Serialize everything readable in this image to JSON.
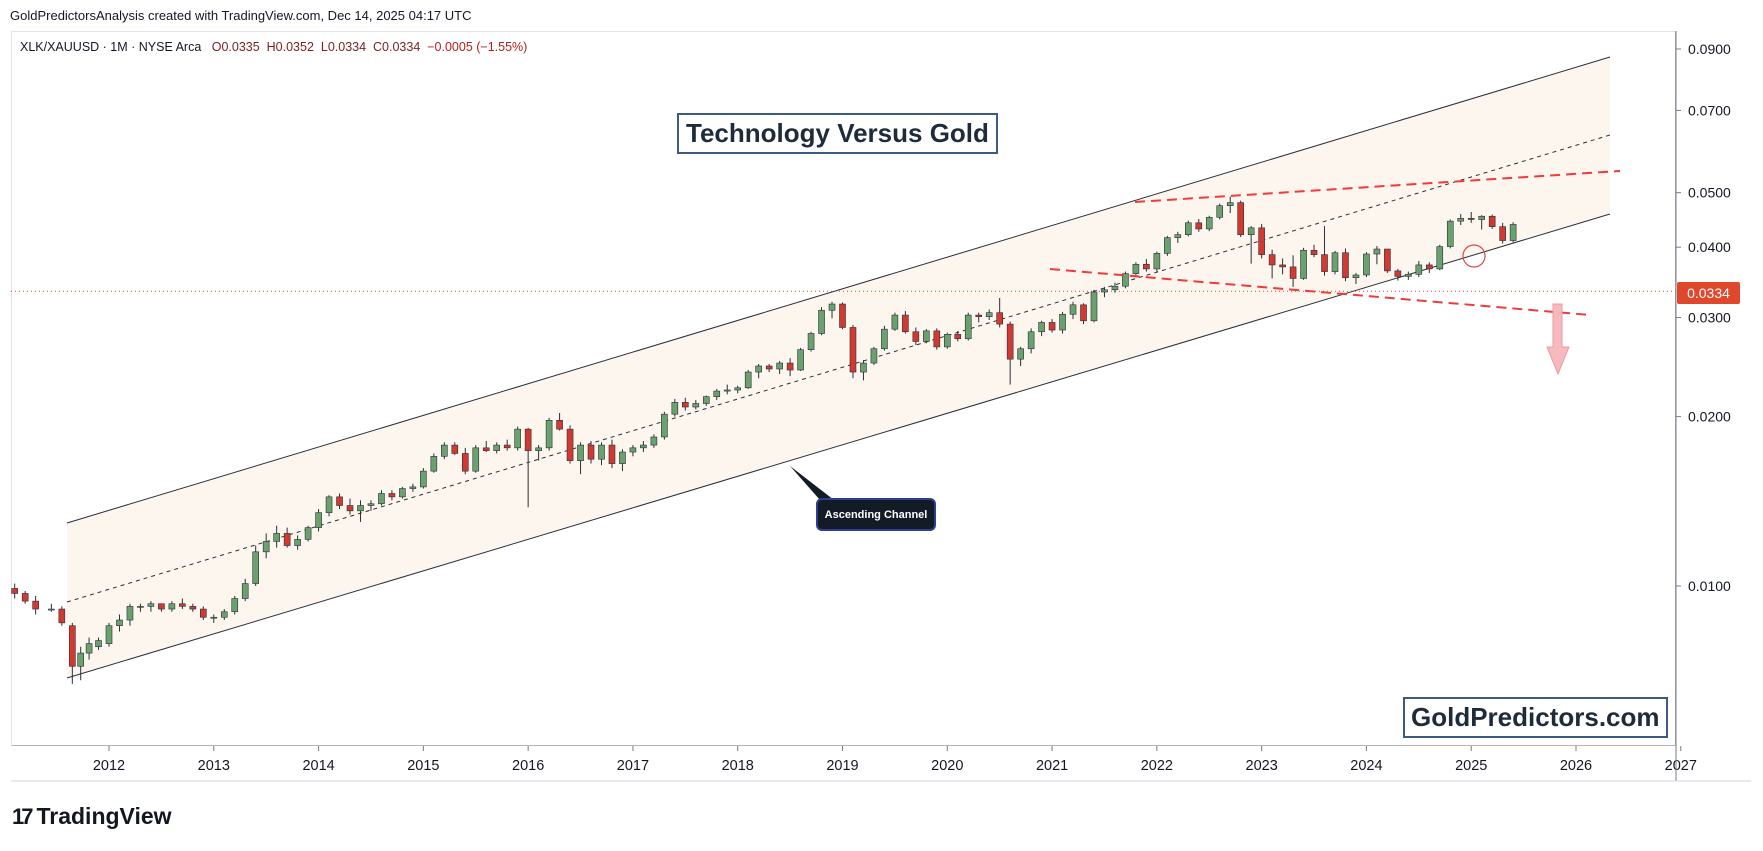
{
  "header": {
    "attribution": "GoldPredictorsAnalysis created with TradingView.com, Dec 14, 2025 04:17 UTC"
  },
  "legend": {
    "symbol": "XLK/XAUUSD · 1M · NYSE Arca",
    "open": "O0.0335",
    "high": "H0.0352",
    "low": "L0.0334",
    "close": "C0.0334",
    "change": "−0.0005 (−1.55%)"
  },
  "annotations": {
    "title": "Technology Versus Gold",
    "callout": "Ascending Channel",
    "brand": "GoldPredictors.com",
    "current_price": "0.0334"
  },
  "footer": {
    "logo_text": "TradingView"
  },
  "colors": {
    "up": "#6aa26e",
    "down": "#d13a30",
    "channel_fill": "#fdf6ee",
    "price_line": "#e0482e",
    "dashed_red": "#ee3b3b",
    "arrow": "#f6b9bd"
  },
  "chart_data": {
    "type": "candlestick",
    "scale": "log",
    "y_ticks": [
      "0.0900",
      "0.0700",
      "0.0500",
      "0.0400",
      "0.0300",
      "0.0200",
      "0.0100"
    ],
    "x_ticks": [
      "2012",
      "2013",
      "2014",
      "2015",
      "2016",
      "2017",
      "2018",
      "2019",
      "2020",
      "2021",
      "2022",
      "2023",
      "2024",
      "2025",
      "2026",
      "2027"
    ],
    "ylim": [
      0.0062,
      0.097
    ],
    "xlim": [
      2011.0,
      2027.15
    ],
    "current_price": 0.0334,
    "candles": [
      {
        "t": 2011.1,
        "o": 0.0099,
        "h": 0.0101,
        "l": 0.0095,
        "c": 0.0097
      },
      {
        "t": 2011.2,
        "o": 0.0097,
        "h": 0.0098,
        "l": 0.0093,
        "c": 0.0094
      },
      {
        "t": 2011.3,
        "o": 0.0094,
        "h": 0.0096,
        "l": 0.0089,
        "c": 0.0091
      },
      {
        "t": 2011.45,
        "o": 0.0091,
        "h": 0.0093,
        "l": 0.009,
        "c": 0.0091
      },
      {
        "t": 2011.55,
        "o": 0.0091,
        "h": 0.0092,
        "l": 0.0085,
        "c": 0.0086
      },
      {
        "t": 2011.65,
        "o": 0.0085,
        "h": 0.0086,
        "l": 0.0067,
        "c": 0.0072
      },
      {
        "t": 2011.73,
        "o": 0.0072,
        "h": 0.0078,
        "l": 0.0068,
        "c": 0.0076
      },
      {
        "t": 2011.81,
        "o": 0.0076,
        "h": 0.0081,
        "l": 0.0074,
        "c": 0.0079
      },
      {
        "t": 2011.9,
        "o": 0.0078,
        "h": 0.0081,
        "l": 0.0077,
        "c": 0.008
      },
      {
        "t": 2012.0,
        "o": 0.0079,
        "h": 0.0086,
        "l": 0.0078,
        "c": 0.0085
      },
      {
        "t": 2012.1,
        "o": 0.0085,
        "h": 0.0089,
        "l": 0.0083,
        "c": 0.0087
      },
      {
        "t": 2012.2,
        "o": 0.0087,
        "h": 0.0093,
        "l": 0.0085,
        "c": 0.0092
      },
      {
        "t": 2012.3,
        "o": 0.0092,
        "h": 0.0093,
        "l": 0.009,
        "c": 0.0092
      },
      {
        "t": 2012.4,
        "o": 0.0092,
        "h": 0.0094,
        "l": 0.009,
        "c": 0.0093
      },
      {
        "t": 2012.5,
        "o": 0.0093,
        "h": 0.0093,
        "l": 0.009,
        "c": 0.0091
      },
      {
        "t": 2012.6,
        "o": 0.0091,
        "h": 0.0094,
        "l": 0.009,
        "c": 0.0093
      },
      {
        "t": 2012.7,
        "o": 0.0093,
        "h": 0.0095,
        "l": 0.0091,
        "c": 0.0092
      },
      {
        "t": 2012.8,
        "o": 0.0092,
        "h": 0.0093,
        "l": 0.009,
        "c": 0.0091
      },
      {
        "t": 2012.9,
        "o": 0.0091,
        "h": 0.0092,
        "l": 0.0087,
        "c": 0.0088
      },
      {
        "t": 2013.0,
        "o": 0.0088,
        "h": 0.0089,
        "l": 0.0086,
        "c": 0.0088
      },
      {
        "t": 2013.1,
        "o": 0.0088,
        "h": 0.0091,
        "l": 0.0087,
        "c": 0.009
      },
      {
        "t": 2013.2,
        "o": 0.009,
        "h": 0.0096,
        "l": 0.0089,
        "c": 0.0095
      },
      {
        "t": 2013.3,
        "o": 0.0095,
        "h": 0.0103,
        "l": 0.0094,
        "c": 0.0101
      },
      {
        "t": 2013.4,
        "o": 0.0101,
        "h": 0.0118,
        "l": 0.01,
        "c": 0.0115
      },
      {
        "t": 2013.5,
        "o": 0.0115,
        "h": 0.0124,
        "l": 0.0112,
        "c": 0.012
      },
      {
        "t": 2013.6,
        "o": 0.012,
        "h": 0.0128,
        "l": 0.0117,
        "c": 0.0124
      },
      {
        "t": 2013.7,
        "o": 0.0124,
        "h": 0.0127,
        "l": 0.0117,
        "c": 0.0118
      },
      {
        "t": 2013.8,
        "o": 0.0118,
        "h": 0.0123,
        "l": 0.0116,
        "c": 0.0121
      },
      {
        "t": 2013.9,
        "o": 0.0121,
        "h": 0.0128,
        "l": 0.012,
        "c": 0.0127
      },
      {
        "t": 2014.0,
        "o": 0.0127,
        "h": 0.0137,
        "l": 0.0125,
        "c": 0.0135
      },
      {
        "t": 2014.1,
        "o": 0.0135,
        "h": 0.0145,
        "l": 0.0133,
        "c": 0.0144
      },
      {
        "t": 2014.2,
        "o": 0.0144,
        "h": 0.0146,
        "l": 0.0137,
        "c": 0.0139
      },
      {
        "t": 2014.3,
        "o": 0.0139,
        "h": 0.0143,
        "l": 0.0134,
        "c": 0.0136
      },
      {
        "t": 2014.4,
        "o": 0.0136,
        "h": 0.0142,
        "l": 0.013,
        "c": 0.0139
      },
      {
        "t": 2014.5,
        "o": 0.0139,
        "h": 0.0142,
        "l": 0.0136,
        "c": 0.014
      },
      {
        "t": 2014.6,
        "o": 0.014,
        "h": 0.0148,
        "l": 0.0139,
        "c": 0.0146
      },
      {
        "t": 2014.7,
        "o": 0.0146,
        "h": 0.0148,
        "l": 0.0142,
        "c": 0.0144
      },
      {
        "t": 2014.8,
        "o": 0.0144,
        "h": 0.015,
        "l": 0.0143,
        "c": 0.0149
      },
      {
        "t": 2014.9,
        "o": 0.0149,
        "h": 0.0152,
        "l": 0.0147,
        "c": 0.015
      },
      {
        "t": 2015.0,
        "o": 0.015,
        "h": 0.0162,
        "l": 0.0149,
        "c": 0.016
      },
      {
        "t": 2015.1,
        "o": 0.016,
        "h": 0.0172,
        "l": 0.0159,
        "c": 0.017
      },
      {
        "t": 2015.2,
        "o": 0.017,
        "h": 0.018,
        "l": 0.0168,
        "c": 0.0178
      },
      {
        "t": 2015.3,
        "o": 0.0178,
        "h": 0.018,
        "l": 0.0171,
        "c": 0.0172
      },
      {
        "t": 2015.4,
        "o": 0.0172,
        "h": 0.0176,
        "l": 0.0158,
        "c": 0.016
      },
      {
        "t": 2015.5,
        "o": 0.016,
        "h": 0.0178,
        "l": 0.0159,
        "c": 0.0176
      },
      {
        "t": 2015.6,
        "o": 0.0176,
        "h": 0.0181,
        "l": 0.0173,
        "c": 0.0174
      },
      {
        "t": 2015.7,
        "o": 0.0174,
        "h": 0.018,
        "l": 0.0172,
        "c": 0.0178
      },
      {
        "t": 2015.8,
        "o": 0.0178,
        "h": 0.0182,
        "l": 0.0174,
        "c": 0.0176
      },
      {
        "t": 2015.9,
        "o": 0.0176,
        "h": 0.0192,
        "l": 0.0174,
        "c": 0.019
      },
      {
        "t": 2016.0,
        "o": 0.019,
        "h": 0.0191,
        "l": 0.0138,
        "c": 0.0174
      },
      {
        "t": 2016.1,
        "o": 0.0174,
        "h": 0.0178,
        "l": 0.0167,
        "c": 0.0176
      },
      {
        "t": 2016.2,
        "o": 0.0176,
        "h": 0.0199,
        "l": 0.0174,
        "c": 0.0197
      },
      {
        "t": 2016.3,
        "o": 0.0197,
        "h": 0.0203,
        "l": 0.0189,
        "c": 0.019
      },
      {
        "t": 2016.4,
        "o": 0.019,
        "h": 0.0193,
        "l": 0.0165,
        "c": 0.0167
      },
      {
        "t": 2016.5,
        "o": 0.0167,
        "h": 0.018,
        "l": 0.0158,
        "c": 0.0178
      },
      {
        "t": 2016.6,
        "o": 0.0178,
        "h": 0.0181,
        "l": 0.0165,
        "c": 0.0168
      },
      {
        "t": 2016.7,
        "o": 0.0168,
        "h": 0.018,
        "l": 0.0164,
        "c": 0.0178
      },
      {
        "t": 2016.8,
        "o": 0.0178,
        "h": 0.0182,
        "l": 0.0162,
        "c": 0.0165
      },
      {
        "t": 2016.9,
        "o": 0.0165,
        "h": 0.0175,
        "l": 0.016,
        "c": 0.0173
      },
      {
        "t": 2017.0,
        "o": 0.0173,
        "h": 0.0178,
        "l": 0.017,
        "c": 0.0176
      },
      {
        "t": 2017.1,
        "o": 0.0176,
        "h": 0.0181,
        "l": 0.0173,
        "c": 0.0178
      },
      {
        "t": 2017.2,
        "o": 0.0178,
        "h": 0.0186,
        "l": 0.0176,
        "c": 0.0184
      },
      {
        "t": 2017.3,
        "o": 0.0184,
        "h": 0.0204,
        "l": 0.0182,
        "c": 0.0202
      },
      {
        "t": 2017.4,
        "o": 0.0202,
        "h": 0.0215,
        "l": 0.02,
        "c": 0.0212
      },
      {
        "t": 2017.5,
        "o": 0.0212,
        "h": 0.0216,
        "l": 0.0205,
        "c": 0.0208
      },
      {
        "t": 2017.6,
        "o": 0.0208,
        "h": 0.0214,
        "l": 0.0206,
        "c": 0.0211
      },
      {
        "t": 2017.7,
        "o": 0.0211,
        "h": 0.0218,
        "l": 0.0209,
        "c": 0.0217
      },
      {
        "t": 2017.8,
        "o": 0.0217,
        "h": 0.0224,
        "l": 0.0214,
        "c": 0.0222
      },
      {
        "t": 2017.9,
        "o": 0.0222,
        "h": 0.0228,
        "l": 0.0219,
        "c": 0.0223
      },
      {
        "t": 2018.0,
        "o": 0.0223,
        "h": 0.0227,
        "l": 0.022,
        "c": 0.0225
      },
      {
        "t": 2018.1,
        "o": 0.0225,
        "h": 0.0242,
        "l": 0.0224,
        "c": 0.024
      },
      {
        "t": 2018.2,
        "o": 0.024,
        "h": 0.0248,
        "l": 0.0234,
        "c": 0.0246
      },
      {
        "t": 2018.3,
        "o": 0.0246,
        "h": 0.0248,
        "l": 0.024,
        "c": 0.0243
      },
      {
        "t": 2018.4,
        "o": 0.0243,
        "h": 0.0251,
        "l": 0.0238,
        "c": 0.0249
      },
      {
        "t": 2018.5,
        "o": 0.0249,
        "h": 0.0254,
        "l": 0.0236,
        "c": 0.0242
      },
      {
        "t": 2018.6,
        "o": 0.0242,
        "h": 0.0265,
        "l": 0.0241,
        "c": 0.0263
      },
      {
        "t": 2018.7,
        "o": 0.0263,
        "h": 0.0283,
        "l": 0.0261,
        "c": 0.0281
      },
      {
        "t": 2018.8,
        "o": 0.0281,
        "h": 0.0313,
        "l": 0.0279,
        "c": 0.0309
      },
      {
        "t": 2018.9,
        "o": 0.0309,
        "h": 0.032,
        "l": 0.0299,
        "c": 0.0317
      },
      {
        "t": 2019.0,
        "o": 0.0317,
        "h": 0.0319,
        "l": 0.0286,
        "c": 0.0288
      },
      {
        "t": 2019.1,
        "o": 0.0288,
        "h": 0.0291,
        "l": 0.0234,
        "c": 0.024
      },
      {
        "t": 2019.2,
        "o": 0.024,
        "h": 0.0252,
        "l": 0.0232,
        "c": 0.0249
      },
      {
        "t": 2019.3,
        "o": 0.0249,
        "h": 0.0266,
        "l": 0.0247,
        "c": 0.0264
      },
      {
        "t": 2019.4,
        "o": 0.0264,
        "h": 0.029,
        "l": 0.0262,
        "c": 0.0286
      },
      {
        "t": 2019.5,
        "o": 0.0286,
        "h": 0.0306,
        "l": 0.0284,
        "c": 0.0303
      },
      {
        "t": 2019.6,
        "o": 0.0303,
        "h": 0.0308,
        "l": 0.0281,
        "c": 0.0283
      },
      {
        "t": 2019.7,
        "o": 0.0283,
        "h": 0.0288,
        "l": 0.0268,
        "c": 0.0272
      },
      {
        "t": 2019.8,
        "o": 0.0272,
        "h": 0.0286,
        "l": 0.027,
        "c": 0.0284
      },
      {
        "t": 2019.9,
        "o": 0.0284,
        "h": 0.0287,
        "l": 0.0263,
        "c": 0.0266
      },
      {
        "t": 2020.0,
        "o": 0.0266,
        "h": 0.0282,
        "l": 0.0264,
        "c": 0.028
      },
      {
        "t": 2020.1,
        "o": 0.028,
        "h": 0.0284,
        "l": 0.0272,
        "c": 0.0275
      },
      {
        "t": 2020.2,
        "o": 0.0275,
        "h": 0.0306,
        "l": 0.0273,
        "c": 0.0303
      },
      {
        "t": 2020.3,
        "o": 0.0303,
        "h": 0.0306,
        "l": 0.0294,
        "c": 0.0301
      },
      {
        "t": 2020.4,
        "o": 0.0301,
        "h": 0.031,
        "l": 0.0297,
        "c": 0.0306
      },
      {
        "t": 2020.5,
        "o": 0.0306,
        "h": 0.0325,
        "l": 0.0288,
        "c": 0.0292
      },
      {
        "t": 2020.6,
        "o": 0.0292,
        "h": 0.0295,
        "l": 0.0228,
        "c": 0.0253
      },
      {
        "t": 2020.7,
        "o": 0.0253,
        "h": 0.0266,
        "l": 0.0246,
        "c": 0.0264
      },
      {
        "t": 2020.8,
        "o": 0.0264,
        "h": 0.0287,
        "l": 0.0259,
        "c": 0.0283
      },
      {
        "t": 2020.9,
        "o": 0.0283,
        "h": 0.0296,
        "l": 0.0278,
        "c": 0.0294
      },
      {
        "t": 2021.0,
        "o": 0.0294,
        "h": 0.0298,
        "l": 0.0282,
        "c": 0.0285
      },
      {
        "t": 2021.1,
        "o": 0.0285,
        "h": 0.0307,
        "l": 0.0281,
        "c": 0.0304
      },
      {
        "t": 2021.2,
        "o": 0.0304,
        "h": 0.032,
        "l": 0.0298,
        "c": 0.0316
      },
      {
        "t": 2021.3,
        "o": 0.0316,
        "h": 0.0318,
        "l": 0.0292,
        "c": 0.0296
      },
      {
        "t": 2021.4,
        "o": 0.0296,
        "h": 0.0336,
        "l": 0.0294,
        "c": 0.0333
      },
      {
        "t": 2021.5,
        "o": 0.0333,
        "h": 0.034,
        "l": 0.0326,
        "c": 0.0336
      },
      {
        "t": 2021.6,
        "o": 0.0336,
        "h": 0.0346,
        "l": 0.0332,
        "c": 0.0341
      },
      {
        "t": 2021.7,
        "o": 0.0341,
        "h": 0.0362,
        "l": 0.0338,
        "c": 0.0359
      },
      {
        "t": 2021.8,
        "o": 0.0359,
        "h": 0.0376,
        "l": 0.0355,
        "c": 0.0373
      },
      {
        "t": 2021.9,
        "o": 0.0373,
        "h": 0.0381,
        "l": 0.0362,
        "c": 0.0366
      },
      {
        "t": 2022.0,
        "o": 0.0366,
        "h": 0.0393,
        "l": 0.0362,
        "c": 0.039
      },
      {
        "t": 2022.1,
        "o": 0.039,
        "h": 0.0419,
        "l": 0.0386,
        "c": 0.0416
      },
      {
        "t": 2022.2,
        "o": 0.0416,
        "h": 0.0426,
        "l": 0.0407,
        "c": 0.0421
      },
      {
        "t": 2022.3,
        "o": 0.0421,
        "h": 0.0446,
        "l": 0.0418,
        "c": 0.0442
      },
      {
        "t": 2022.4,
        "o": 0.0442,
        "h": 0.0449,
        "l": 0.0426,
        "c": 0.0431
      },
      {
        "t": 2022.5,
        "o": 0.0431,
        "h": 0.0455,
        "l": 0.0427,
        "c": 0.0452
      },
      {
        "t": 2022.6,
        "o": 0.0452,
        "h": 0.0478,
        "l": 0.0448,
        "c": 0.0474
      },
      {
        "t": 2022.7,
        "o": 0.0474,
        "h": 0.0492,
        "l": 0.046,
        "c": 0.048
      },
      {
        "t": 2022.8,
        "o": 0.048,
        "h": 0.0484,
        "l": 0.0417,
        "c": 0.0421
      },
      {
        "t": 2022.9,
        "o": 0.0421,
        "h": 0.0436,
        "l": 0.0374,
        "c": 0.0433
      },
      {
        "t": 2023.0,
        "o": 0.0433,
        "h": 0.044,
        "l": 0.0382,
        "c": 0.0388
      },
      {
        "t": 2023.1,
        "o": 0.0388,
        "h": 0.0396,
        "l": 0.0352,
        "c": 0.0372
      },
      {
        "t": 2023.2,
        "o": 0.0372,
        "h": 0.0382,
        "l": 0.0358,
        "c": 0.0369
      },
      {
        "t": 2023.3,
        "o": 0.0369,
        "h": 0.0387,
        "l": 0.034,
        "c": 0.0352
      },
      {
        "t": 2023.4,
        "o": 0.0352,
        "h": 0.0399,
        "l": 0.035,
        "c": 0.0395
      },
      {
        "t": 2023.5,
        "o": 0.0395,
        "h": 0.0404,
        "l": 0.0384,
        "c": 0.0388
      },
      {
        "t": 2023.6,
        "o": 0.0388,
        "h": 0.0436,
        "l": 0.0356,
        "c": 0.0362
      },
      {
        "t": 2023.7,
        "o": 0.0362,
        "h": 0.0394,
        "l": 0.0358,
        "c": 0.0391
      },
      {
        "t": 2023.8,
        "o": 0.0391,
        "h": 0.0398,
        "l": 0.0348,
        "c": 0.0353
      },
      {
        "t": 2023.9,
        "o": 0.0353,
        "h": 0.036,
        "l": 0.0344,
        "c": 0.0357
      },
      {
        "t": 2024.0,
        "o": 0.0357,
        "h": 0.0392,
        "l": 0.0354,
        "c": 0.0389
      },
      {
        "t": 2024.1,
        "o": 0.0389,
        "h": 0.0402,
        "l": 0.0373,
        "c": 0.0397
      },
      {
        "t": 2024.2,
        "o": 0.0397,
        "h": 0.0394,
        "l": 0.036,
        "c": 0.0363
      },
      {
        "t": 2024.3,
        "o": 0.0363,
        "h": 0.0366,
        "l": 0.0349,
        "c": 0.0355
      },
      {
        "t": 2024.4,
        "o": 0.0355,
        "h": 0.0362,
        "l": 0.035,
        "c": 0.0358
      },
      {
        "t": 2024.5,
        "o": 0.0358,
        "h": 0.0378,
        "l": 0.0354,
        "c": 0.0372
      },
      {
        "t": 2024.6,
        "o": 0.0372,
        "h": 0.0376,
        "l": 0.036,
        "c": 0.0366
      },
      {
        "t": 2024.7,
        "o": 0.0366,
        "h": 0.0404,
        "l": 0.0364,
        "c": 0.0401
      },
      {
        "t": 2024.8,
        "o": 0.0401,
        "h": 0.0448,
        "l": 0.0398,
        "c": 0.0445
      },
      {
        "t": 2024.9,
        "o": 0.0445,
        "h": 0.0458,
        "l": 0.0438,
        "c": 0.045
      },
      {
        "t": 2025.0,
        "o": 0.045,
        "h": 0.0462,
        "l": 0.0442,
        "c": 0.0448
      },
      {
        "t": 2025.1,
        "o": 0.0448,
        "h": 0.0456,
        "l": 0.043,
        "c": 0.0454
      },
      {
        "t": 2025.2,
        "o": 0.0454,
        "h": 0.0457,
        "l": 0.0431,
        "c": 0.0435
      },
      {
        "t": 2025.3,
        "o": 0.0435,
        "h": 0.0442,
        "l": 0.0406,
        "c": 0.0411
      },
      {
        "t": 2025.4,
        "o": 0.0411,
        "h": 0.0443,
        "l": 0.0408,
        "c": 0.0439
      }
    ]
  }
}
